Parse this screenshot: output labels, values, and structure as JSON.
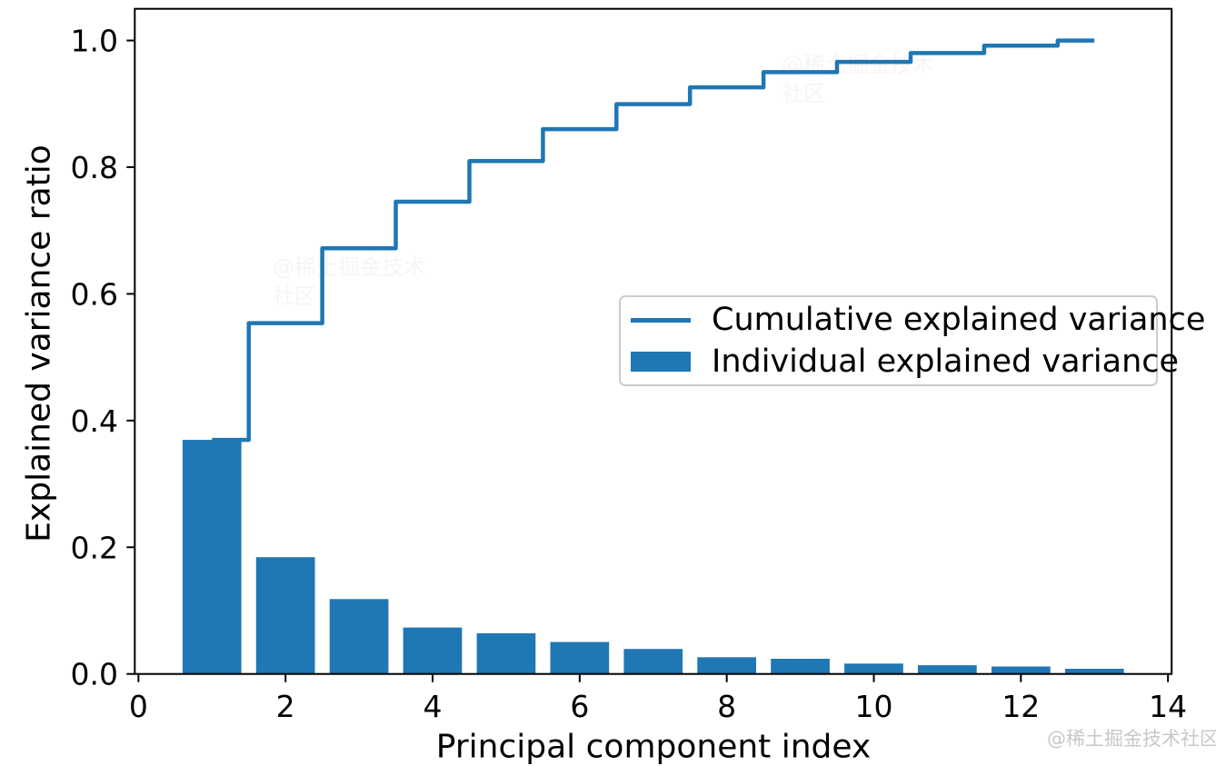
{
  "chart_data": {
    "type": "bar",
    "title": "",
    "xlabel": "Principal component index",
    "ylabel": "Explained variance ratio",
    "x": [
      1,
      2,
      3,
      4,
      5,
      6,
      7,
      8,
      9,
      10,
      11,
      12,
      13
    ],
    "series": [
      {
        "name": "Cumulative explained variance",
        "type": "step",
        "where": "mid",
        "values": [
          0.3695,
          0.5539,
          0.672,
          0.7454,
          0.8096,
          0.8601,
          0.8996,
          0.9261,
          0.95,
          0.9663,
          0.9801,
          0.9918,
          1.0
        ]
      },
      {
        "name": "Individual explained variance",
        "type": "bar",
        "values": [
          0.3695,
          0.1843,
          0.1182,
          0.0733,
          0.0642,
          0.0505,
          0.0395,
          0.0264,
          0.0239,
          0.0163,
          0.0138,
          0.0117,
          0.0082
        ]
      }
    ],
    "bar_width": 0.8,
    "xlim": [
      -0.05,
      14.05
    ],
    "ylim": [
      0,
      1.05
    ],
    "xticks": [
      0,
      2,
      4,
      6,
      8,
      10,
      12,
      14
    ],
    "xtick_labels": [
      "0",
      "2",
      "4",
      "6",
      "8",
      "10",
      "12",
      "14"
    ],
    "yticks": [
      0.0,
      0.2,
      0.4,
      0.6,
      0.8,
      1.0
    ],
    "ytick_labels": [
      "0.0",
      "0.2",
      "0.4",
      "0.6",
      "0.8",
      "1.0"
    ],
    "grid": false,
    "legend_position": "center right",
    "colors": {
      "bar": "#1f77b4",
      "line": "#1f77b4",
      "axis": "#000000",
      "tick_text": "#000000",
      "legend_border": "#cccccc"
    }
  },
  "axes": {
    "xlabel": "Principal component index",
    "ylabel": "Explained variance ratio"
  },
  "legend": {
    "items": [
      {
        "label": "Cumulative explained variance",
        "swatch": "line"
      },
      {
        "label": "Individual explained variance",
        "swatch": "patch"
      }
    ]
  },
  "watermark": {
    "text": "@稀土掘金技术社区"
  }
}
